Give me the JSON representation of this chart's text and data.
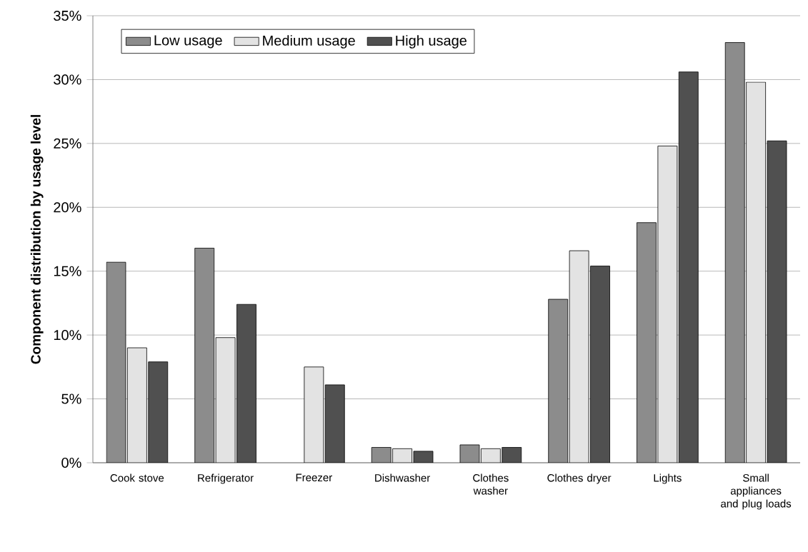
{
  "chart_data": {
    "type": "bar",
    "ylabel": "Component distribution by usage level",
    "categories": [
      "Cook stove",
      "Refrigerator",
      "Freezer",
      "Dishwasher",
      "Clothes washer",
      "Clothes dryer",
      "Lights",
      "Small appliances and plug loads"
    ],
    "series": [
      {
        "name": "Low usage",
        "color": "#8c8c8c",
        "values": [
          15.7,
          16.8,
          null,
          1.2,
          1.4,
          12.8,
          18.8,
          32.9
        ]
      },
      {
        "name": "Medium usage",
        "color": "#e3e3e3",
        "values": [
          9.0,
          9.8,
          7.5,
          1.1,
          1.1,
          16.6,
          24.8,
          29.8
        ]
      },
      {
        "name": "High usage",
        "color": "#505050",
        "values": [
          7.9,
          12.4,
          6.1,
          0.9,
          1.2,
          15.4,
          30.6,
          25.2
        ]
      }
    ],
    "ylim": [
      0,
      35
    ],
    "yticks": [
      {
        "value": 0,
        "label": "0%"
      },
      {
        "value": 5,
        "label": "5%"
      },
      {
        "value": 10,
        "label": "10%"
      },
      {
        "value": 15,
        "label": "15%"
      },
      {
        "value": 20,
        "label": "20%"
      },
      {
        "value": 25,
        "label": "25%"
      },
      {
        "value": 30,
        "label": "30%"
      },
      {
        "value": 35,
        "label": "35%"
      }
    ],
    "grid": "y",
    "legend": "top left"
  }
}
